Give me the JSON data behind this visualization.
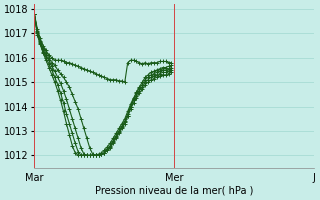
{
  "xlabel": "Pression niveau de la mer( hPa )",
  "ylabel": "",
  "ylim": [
    1011.5,
    1018.2
  ],
  "yticks": [
    1012,
    1013,
    1014,
    1015,
    1016,
    1017,
    1018
  ],
  "xtick_labels": [
    "Mar",
    "Mer",
    "J"
  ],
  "xtick_positions": [
    0,
    48,
    96
  ],
  "background_color": "#c8ede8",
  "grid_color": "#a0d8d0",
  "line_color": "#1a5c1a",
  "marker": "+",
  "series": [
    [
      1017.8,
      1017.2,
      1016.8,
      1016.5,
      1016.3,
      1016.1,
      1016.0,
      1015.9,
      1015.9,
      1015.9,
      1015.85,
      1015.8,
      1015.8,
      1015.75,
      1015.7,
      1015.65,
      1015.6,
      1015.55,
      1015.5,
      1015.45,
      1015.4,
      1015.35,
      1015.3,
      1015.25,
      1015.2,
      1015.15,
      1015.1,
      1015.1,
      1015.1,
      1015.05,
      1015.05,
      1015.0,
      1015.8,
      1015.9,
      1015.9,
      1015.85,
      1015.8,
      1015.75,
      1015.8,
      1015.75,
      1015.8,
      1015.8,
      1015.8,
      1015.85,
      1015.85,
      1015.85,
      1015.8,
      1015.8
    ],
    [
      1017.8,
      1017.1,
      1016.7,
      1016.4,
      1016.2,
      1016.0,
      1015.8,
      1015.7,
      1015.5,
      1015.35,
      1015.2,
      1015.0,
      1014.8,
      1014.5,
      1014.2,
      1013.9,
      1013.5,
      1013.1,
      1012.7,
      1012.3,
      1012.05,
      1012.0,
      1012.0,
      1012.05,
      1012.1,
      1012.2,
      1012.3,
      1012.5,
      1012.7,
      1012.9,
      1013.1,
      1013.3,
      1013.6,
      1014.0,
      1014.3,
      1014.6,
      1014.8,
      1015.0,
      1015.2,
      1015.3,
      1015.4,
      1015.45,
      1015.5,
      1015.55,
      1015.6,
      1015.6,
      1015.65,
      1015.7
    ],
    [
      1017.8,
      1017.05,
      1016.65,
      1016.35,
      1016.1,
      1015.9,
      1015.65,
      1015.45,
      1015.2,
      1014.95,
      1014.65,
      1014.3,
      1013.9,
      1013.5,
      1013.1,
      1012.7,
      1012.3,
      1012.05,
      1012.0,
      1012.0,
      1012.0,
      1012.0,
      1012.05,
      1012.1,
      1012.2,
      1012.35,
      1012.5,
      1012.7,
      1012.9,
      1013.1,
      1013.3,
      1013.5,
      1013.8,
      1014.1,
      1014.35,
      1014.55,
      1014.75,
      1014.9,
      1015.1,
      1015.2,
      1015.3,
      1015.35,
      1015.4,
      1015.45,
      1015.5,
      1015.5,
      1015.55,
      1015.6
    ],
    [
      1017.8,
      1017.0,
      1016.6,
      1016.25,
      1016.0,
      1015.75,
      1015.5,
      1015.2,
      1014.9,
      1014.55,
      1014.15,
      1013.7,
      1013.3,
      1012.9,
      1012.5,
      1012.15,
      1012.0,
      1012.0,
      1012.0,
      1012.0,
      1012.0,
      1012.0,
      1012.0,
      1012.05,
      1012.1,
      1012.25,
      1012.4,
      1012.6,
      1012.8,
      1013.0,
      1013.2,
      1013.4,
      1013.7,
      1014.0,
      1014.25,
      1014.45,
      1014.65,
      1014.8,
      1015.0,
      1015.1,
      1015.2,
      1015.25,
      1015.3,
      1015.35,
      1015.4,
      1015.4,
      1015.45,
      1015.5
    ],
    [
      1017.8,
      1016.95,
      1016.55,
      1016.2,
      1015.9,
      1015.6,
      1015.3,
      1015.0,
      1014.65,
      1014.25,
      1013.8,
      1013.3,
      1012.85,
      1012.4,
      1012.1,
      1012.0,
      1012.0,
      1012.0,
      1012.0,
      1012.0,
      1012.0,
      1012.0,
      1012.0,
      1012.05,
      1012.1,
      1012.2,
      1012.35,
      1012.55,
      1012.75,
      1012.95,
      1013.15,
      1013.35,
      1013.6,
      1013.9,
      1014.15,
      1014.35,
      1014.55,
      1014.7,
      1014.9,
      1015.0,
      1015.1,
      1015.15,
      1015.2,
      1015.25,
      1015.3,
      1015.3,
      1015.35,
      1015.4
    ]
  ]
}
